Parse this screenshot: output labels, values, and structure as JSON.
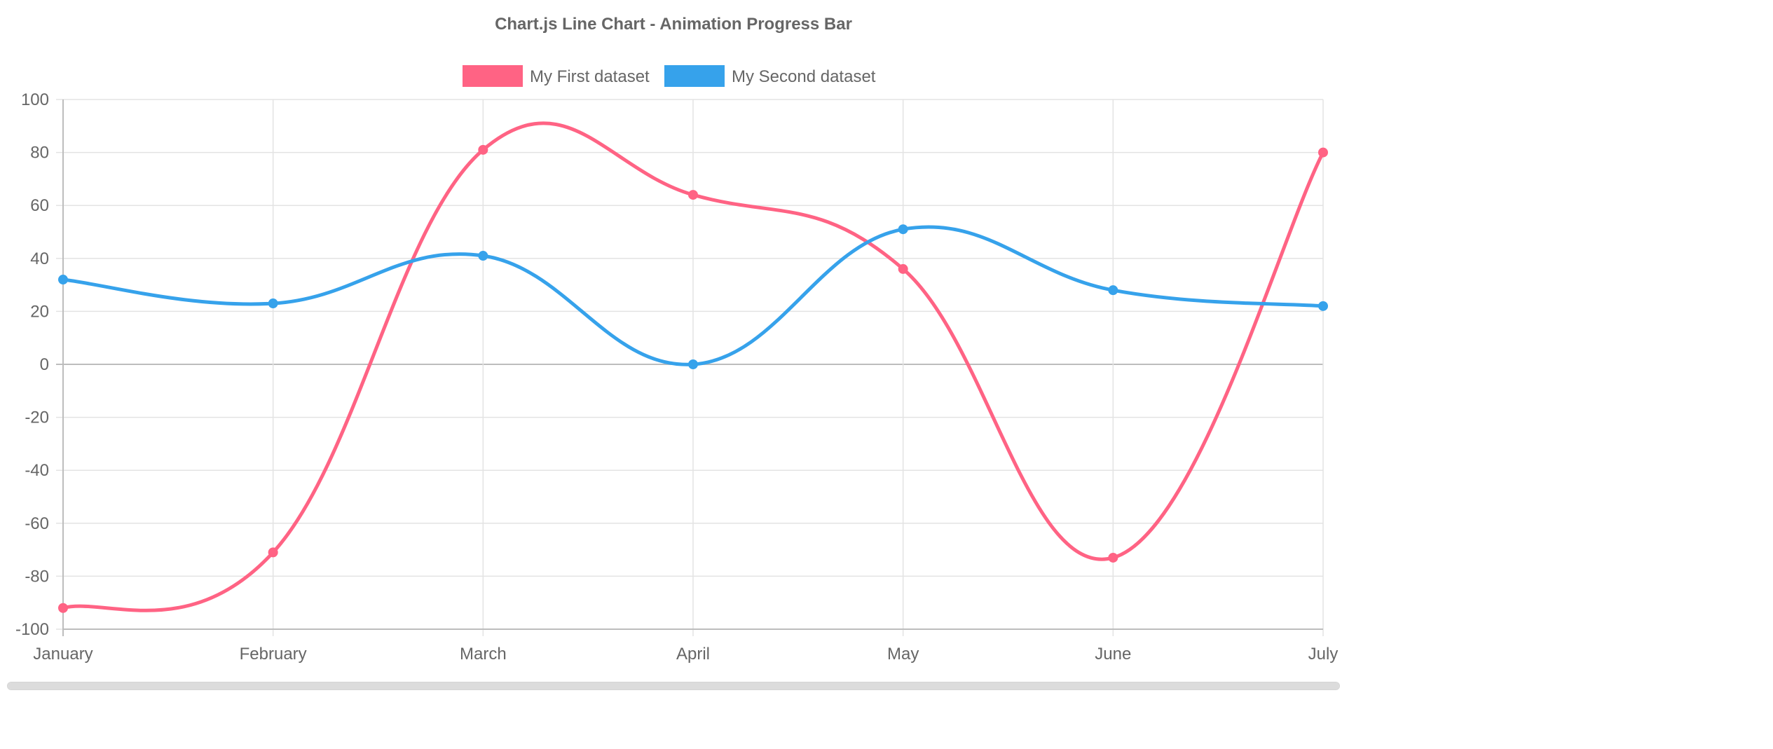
{
  "chart_data": {
    "type": "line",
    "title": "Chart.js Line Chart - Animation Progress Bar",
    "categories": [
      "January",
      "February",
      "March",
      "April",
      "May",
      "June",
      "July"
    ],
    "series": [
      {
        "name": "My First dataset",
        "color": "#ff6384",
        "values": [
          -92,
          -71,
          81,
          64,
          36,
          -73,
          80
        ]
      },
      {
        "name": "My Second dataset",
        "color": "#36a2eb",
        "values": [
          32,
          23,
          41,
          0,
          51,
          28,
          22
        ]
      }
    ],
    "ylim": [
      -100,
      100
    ],
    "yticks": [
      "100",
      "80",
      "60",
      "40",
      "20",
      "0",
      "-20",
      "-40",
      "-60",
      "-80",
      "-100"
    ],
    "grid": true,
    "legend_position": "top",
    "interpolation": "smooth"
  },
  "progress": {
    "animation_progress": 1.0
  }
}
